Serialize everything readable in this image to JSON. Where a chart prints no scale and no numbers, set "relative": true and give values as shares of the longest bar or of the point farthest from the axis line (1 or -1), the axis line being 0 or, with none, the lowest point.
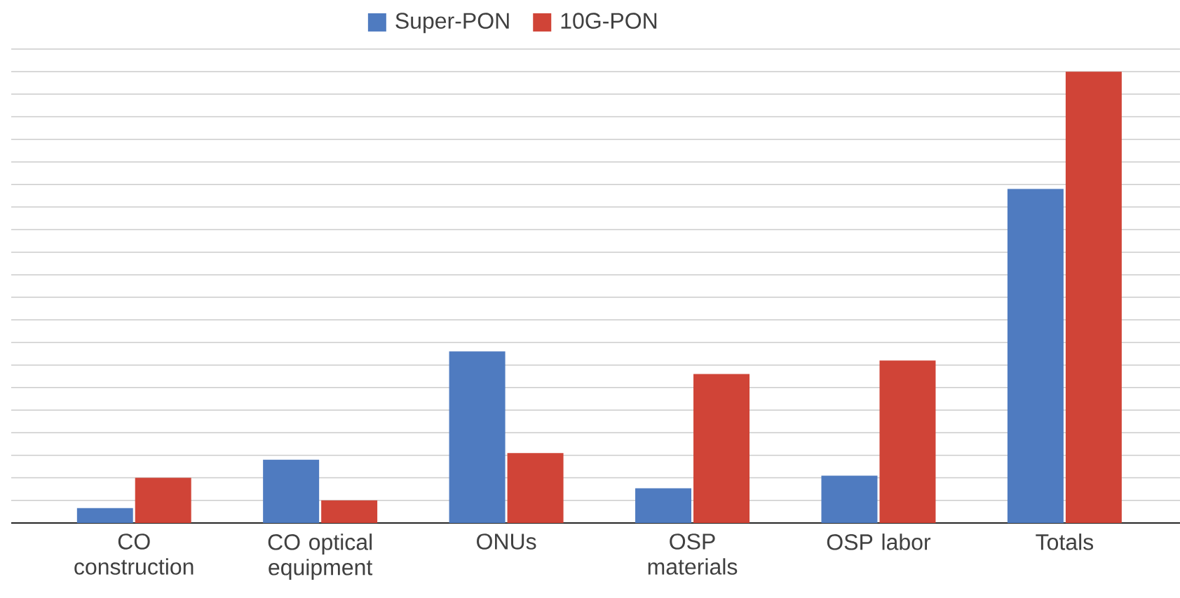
{
  "chart_data": {
    "type": "bar",
    "relative": true,
    "grid": "y",
    "legend": "top",
    "categories": [
      "CO construction",
      "CO optical equipment",
      "ONUs",
      "OSP materials",
      "OSP labor",
      "Totals"
    ],
    "series": [
      {
        "name": "Super-PON",
        "color": "#4f7bc0",
        "values": [
          0.033,
          0.14,
          0.38,
          0.077,
          0.105,
          0.74
        ]
      },
      {
        "name": "10G-PON",
        "color": "#d04437",
        "values": [
          0.1,
          0.05,
          0.155,
          0.33,
          0.36,
          1
        ]
      }
    ]
  }
}
